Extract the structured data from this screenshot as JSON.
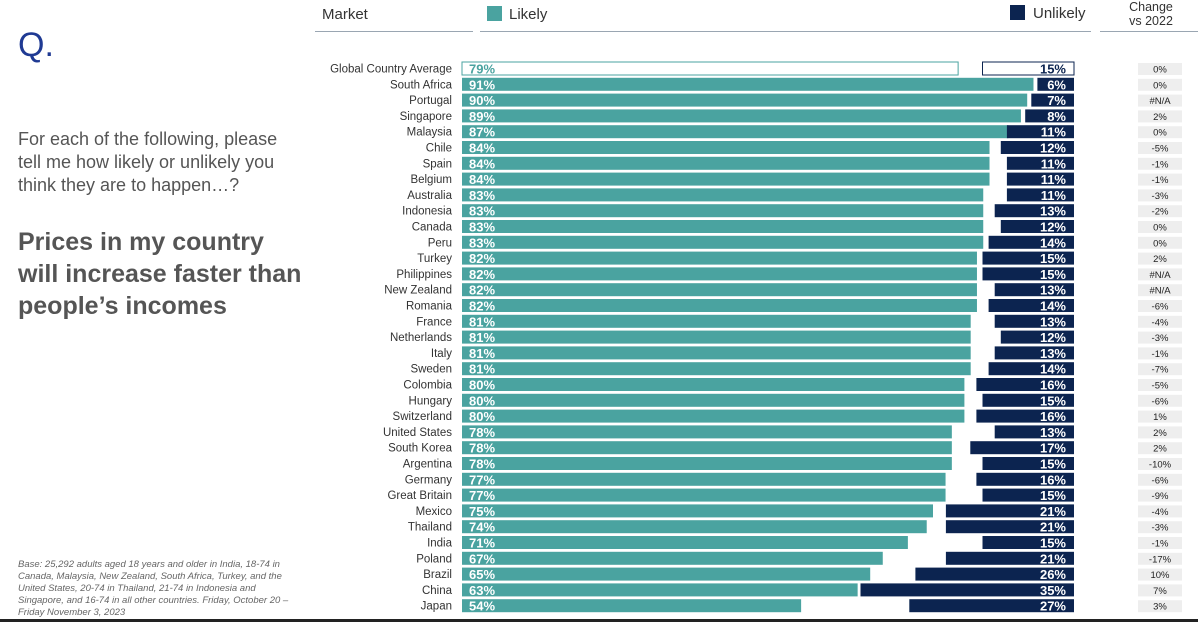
{
  "question_mark": "Q.",
  "question": "For each of the following, please tell me how likely or unlikely you think they are to happen…?",
  "headline": "Prices in my country will increase faster than people’s incomes",
  "base_note": "Base: 25,292 adults aged 18 years and older in India, 18-74 in Canada, Malaysia, New Zealand, South Africa, Turkey, and the United States, 20-74 in Thailand, 21-74 in Indonesia and Singapore, and 16-74 in all other countries. Friday, October 20 – Friday November 3, 2023",
  "headers": {
    "market": "Market",
    "likely": "Likely",
    "unlikely": "Unlikely",
    "change_line1": "Change",
    "change_line2": "vs 2022"
  },
  "colors": {
    "likely": "#4aa3a0",
    "unlikely": "#0c2450",
    "change_bg": "#eeeeee"
  },
  "chart_data": {
    "type": "bar",
    "orientation": "horizontal-diverging",
    "categories": [
      "Global Country Average",
      "South Africa",
      "Portugal",
      "Singapore",
      "Malaysia",
      "Chile",
      "Spain",
      "Belgium",
      "Australia",
      "Indonesia",
      "Canada",
      "Peru",
      "Turkey",
      "Philippines",
      "New Zealand",
      "Romania",
      "France",
      "Netherlands",
      "Italy",
      "Sweden",
      "Colombia",
      "Hungary",
      "Switzerland",
      "United States",
      "South Korea",
      "Argentina",
      "Germany",
      "Great Britain",
      "Mexico",
      "Thailand",
      "India",
      "Poland",
      "Brazil",
      "China",
      "Japan"
    ],
    "series": [
      {
        "name": "Likely",
        "values": [
          79,
          91,
          90,
          89,
          87,
          84,
          84,
          84,
          83,
          83,
          83,
          83,
          82,
          82,
          82,
          82,
          81,
          81,
          81,
          81,
          80,
          80,
          80,
          78,
          78,
          78,
          77,
          77,
          75,
          74,
          71,
          67,
          65,
          63,
          54
        ]
      },
      {
        "name": "Unlikely",
        "values": [
          15,
          6,
          7,
          8,
          11,
          12,
          11,
          11,
          11,
          13,
          12,
          14,
          15,
          15,
          13,
          14,
          13,
          12,
          13,
          14,
          16,
          15,
          16,
          13,
          17,
          15,
          16,
          15,
          21,
          21,
          15,
          21,
          26,
          35,
          27
        ]
      }
    ],
    "likely_labels": [
      "79%",
      "91%",
      "90%",
      "89%",
      "87%",
      "84%",
      "84%",
      "84%",
      "83%",
      "83%",
      "83%",
      "83%",
      "82%",
      "82%",
      "82%",
      "82%",
      "81%",
      "81%",
      "81%",
      "81%",
      "80%",
      "80%",
      "80%",
      "78%",
      "78%",
      "78%",
      "77%",
      "77%",
      "75%",
      "74%",
      "71%",
      "67%",
      "65%",
      "63%",
      "54%"
    ],
    "unlikely_labels": [
      "15%",
      "6%",
      "7%",
      "8%",
      "11%",
      "12%",
      "11%",
      "11%",
      "11%",
      "13%",
      "12%",
      "14%",
      "15%",
      "15%",
      "13%",
      "14%",
      "13%",
      "12%",
      "13%",
      "14%",
      "16%",
      "15%",
      "16%",
      "13%",
      "17%",
      "15%",
      "16%",
      "15%",
      "21%",
      "21%",
      "15%",
      "21%",
      "26%",
      "35%",
      "27%"
    ],
    "change_vs_2022": [
      "0%",
      "0%",
      "#N/A",
      "2%",
      "0%",
      "-5%",
      "-1%",
      "-1%",
      "-3%",
      "-2%",
      "0%",
      "0%",
      "2%",
      "#N/A",
      "#N/A",
      "-6%",
      "-4%",
      "-3%",
      "-1%",
      "-7%",
      "-5%",
      "-6%",
      "1%",
      "2%",
      "2%",
      "-10%",
      "-6%",
      "-9%",
      "-4%",
      "-3%",
      "-1%",
      "-17%",
      "10%",
      "7%",
      "3%"
    ],
    "highlight_first_row": true
  }
}
